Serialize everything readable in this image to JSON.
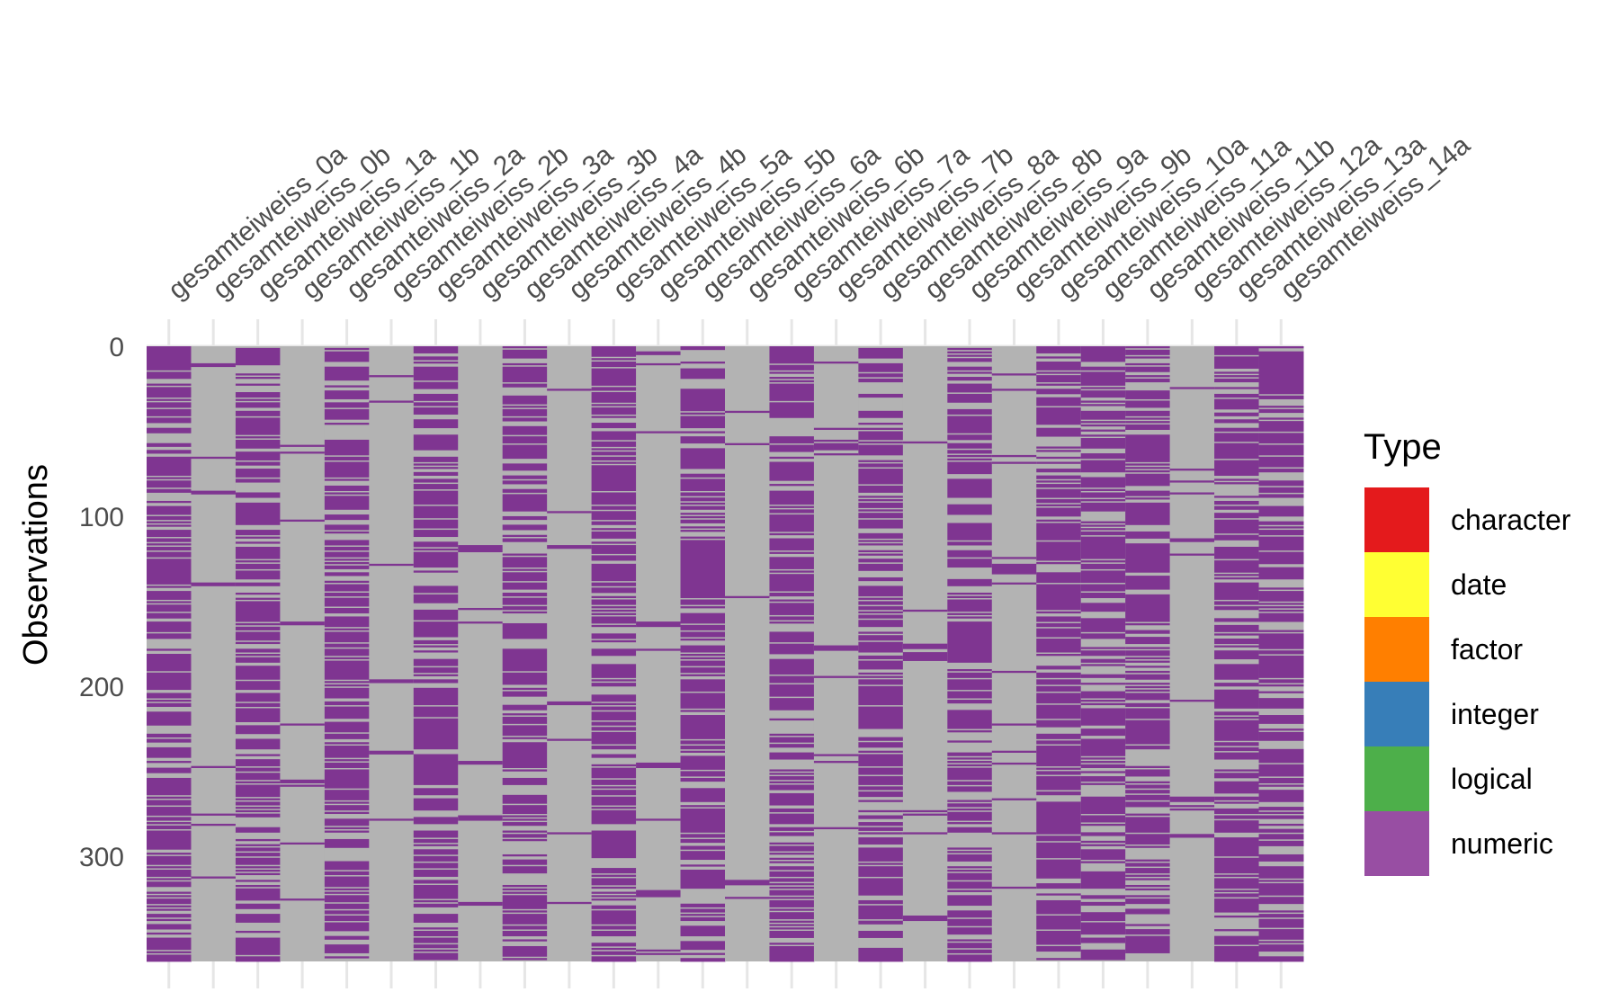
{
  "chart_data": {
    "type": "heatmap",
    "title": "",
    "xlabel": "",
    "ylabel": "Observations",
    "n_observations": 362,
    "ylim": [
      0,
      362
    ],
    "y_ticks": [
      0,
      100,
      200,
      300
    ],
    "columns": [
      "gesamteiweiss_0a",
      "gesamteiweiss_0b",
      "gesamteiweiss_1a",
      "gesamteiweiss_1b",
      "gesamteiweiss_2a",
      "gesamteiweiss_2b",
      "gesamteiweiss_3a",
      "gesamteiweiss_3b",
      "gesamteiweiss_4a",
      "gesamteiweiss_4b",
      "gesamteiweiss_5a",
      "gesamteiweiss_5b",
      "gesamteiweiss_6a",
      "gesamteiweiss_6b",
      "gesamteiweiss_7a",
      "gesamteiweiss_7b",
      "gesamteiweiss_8a",
      "gesamteiweiss_8b",
      "gesamteiweiss_9a",
      "gesamteiweiss_9b",
      "gesamteiweiss_10a",
      "gesamteiweiss_11a",
      "gesamteiweiss_11b",
      "gesamteiweiss_12a",
      "gesamteiweiss_13a",
      "gesamteiweiss_14a"
    ],
    "present_fraction": [
      0.72,
      0.15,
      0.75,
      0.12,
      0.7,
      0.1,
      0.72,
      0.03,
      0.72,
      0.08,
      0.68,
      0.06,
      0.7,
      0.05,
      0.68,
      0.07,
      0.7,
      0.03,
      0.66,
      0.02,
      0.66,
      0.62,
      0.68,
      0.02,
      0.65,
      0.58
    ],
    "missing_color": "#b3b3b3",
    "legend": {
      "title": "Type",
      "position": "right",
      "items": [
        {
          "label": "character",
          "color": "#e41a1c"
        },
        {
          "label": "date",
          "color": "#ffff33"
        },
        {
          "label": "factor",
          "color": "#ff7f00"
        },
        {
          "label": "integer",
          "color": "#377eb8"
        },
        {
          "label": "logical",
          "color": "#4daf4a"
        },
        {
          "label": "numeric",
          "color": "#984ea3"
        }
      ]
    },
    "numeric_color": "#7f3591",
    "grid": true
  }
}
